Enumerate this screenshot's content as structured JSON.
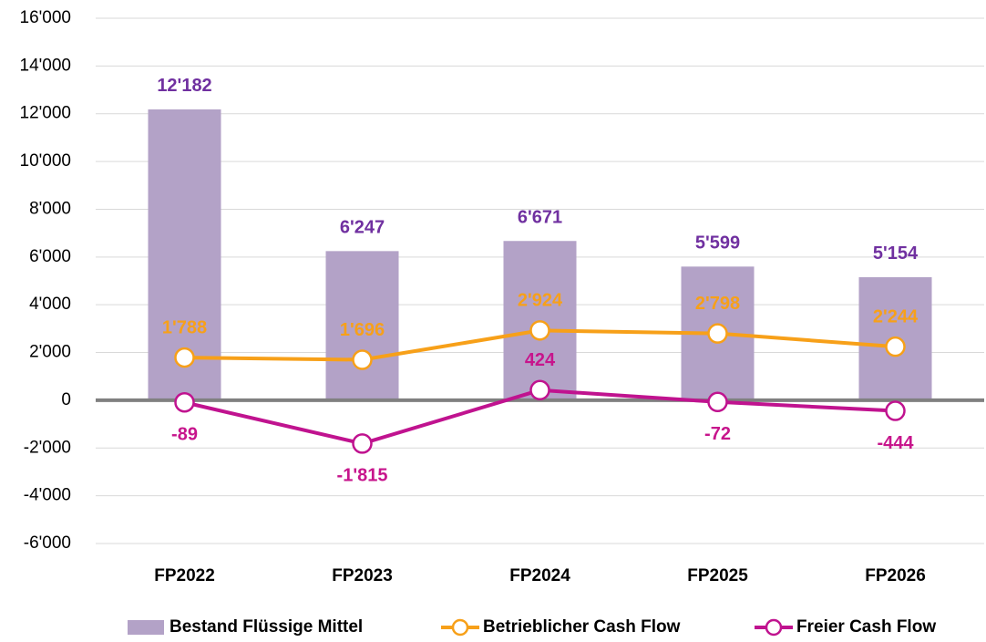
{
  "chart_data": {
    "type": "bar",
    "categories": [
      "FP2022",
      "FP2023",
      "FP2024",
      "FP2025",
      "FP2026"
    ],
    "series": [
      {
        "name": "Bestand Flüssige Mittel",
        "type": "bar",
        "color": "#b3a2c7",
        "label_color": "#7030a0",
        "values": [
          12182,
          6247,
          6671,
          5599,
          5154
        ],
        "value_labels": [
          "12'182",
          "6'247",
          "6'671",
          "5'599",
          "5'154"
        ]
      },
      {
        "name": "Betrieblicher Cash Flow",
        "type": "line",
        "color": "#f7a019",
        "label_color": "#f7a019",
        "values": [
          1788,
          1696,
          2924,
          2798,
          2244
        ],
        "value_labels": [
          "1'788",
          "1'696",
          "2'924",
          "2'798",
          "2'244"
        ]
      },
      {
        "name": "Freier Cash Flow",
        "type": "line",
        "color": "#c0138f",
        "label_color": "#c7158c",
        "values": [
          -89,
          -1815,
          424,
          -72,
          -444
        ],
        "value_labels": [
          "-89",
          "-1'815",
          "424",
          "-72",
          "-444"
        ]
      }
    ],
    "ylim": [
      -6000,
      16000
    ],
    "yticks": [
      {
        "value": -6000,
        "label": "-6'000"
      },
      {
        "value": -4000,
        "label": "-4'000"
      },
      {
        "value": -2000,
        "label": "-2'000"
      },
      0,
      {
        "value": 2000,
        "label": "2'000"
      },
      {
        "value": 4000,
        "label": "4'000"
      },
      {
        "value": 6000,
        "label": "6'000"
      },
      {
        "value": 8000,
        "label": "8'000"
      },
      {
        "value": 10000,
        "label": "10'000"
      },
      {
        "value": 12000,
        "label": "12'000"
      },
      {
        "value": 14000,
        "label": "14'000"
      },
      {
        "value": 16000,
        "label": "16'000"
      }
    ],
    "grid": true,
    "legend": "bottom"
  }
}
